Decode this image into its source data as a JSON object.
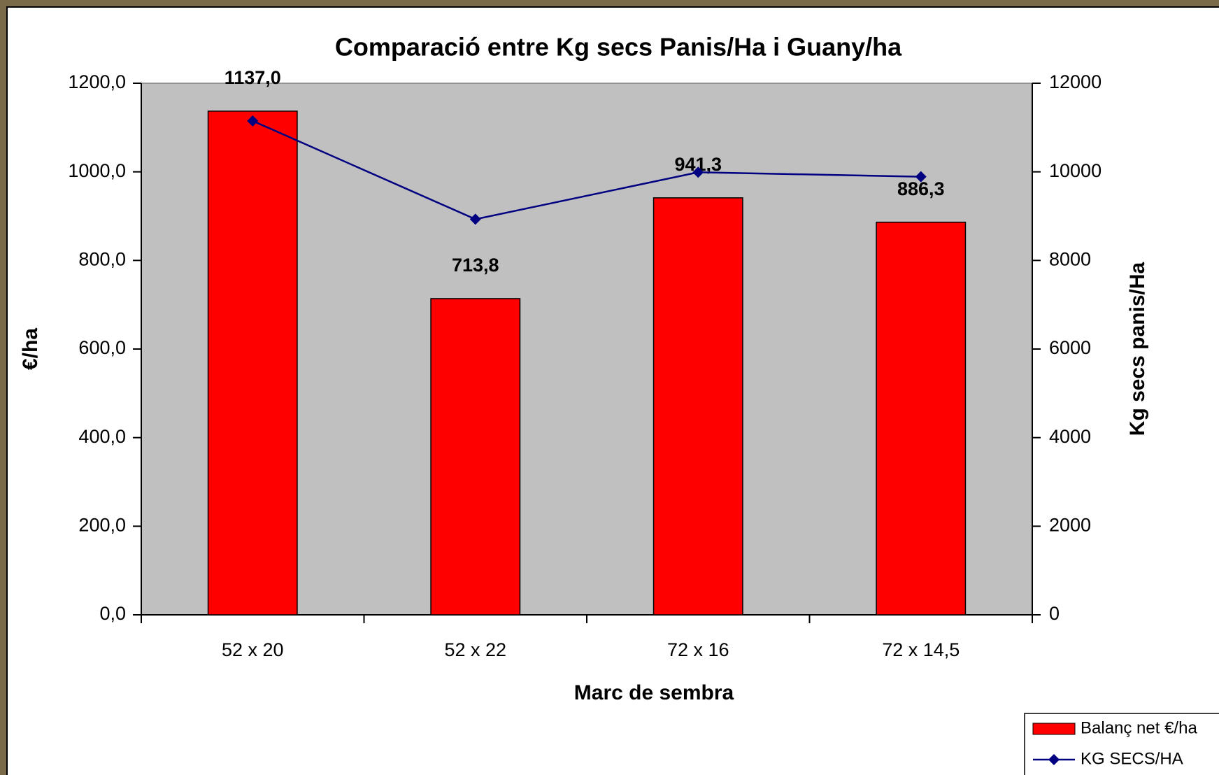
{
  "chart_data": {
    "type": "bar",
    "title": "Comparació entre Kg secs Panis/Ha i Guany/ha",
    "x_label": "Marc de sembra",
    "y_label": "€/ha",
    "y2_label": "Kg secs panis/Ha",
    "categories": [
      "52 x 20",
      "52 x 22",
      "72 x 16",
      "72 x 14,5"
    ],
    "series": [
      {
        "name": "Balanç net €/ha",
        "type": "bar",
        "color": "#ff0000",
        "values": [
          1137.0,
          713.8,
          941.3,
          886.3
        ],
        "value_labels": [
          "1137,0",
          "713,8",
          "941,3",
          "886,3"
        ]
      },
      {
        "name": "KG SECS/HA",
        "type": "line",
        "axis": "y2",
        "color": "#000080",
        "values": [
          11150,
          8930,
          9990,
          9890
        ]
      }
    ],
    "ylim": [
      0,
      1200
    ],
    "yticks": [
      {
        "value": 0,
        "label": "0,0"
      },
      {
        "value": 200,
        "label": "200,0"
      },
      {
        "value": 400,
        "label": "400,0"
      },
      {
        "value": 600,
        "label": "600,0"
      },
      {
        "value": 800,
        "label": "800,0"
      },
      {
        "value": 1000,
        "label": "1000,0"
      },
      {
        "value": 1200,
        "label": "1200,0"
      }
    ],
    "y2lim": [
      0,
      12000
    ],
    "y2ticks": [
      0,
      2000,
      4000,
      6000,
      8000,
      10000,
      12000
    ],
    "plot_background": "#c0c0c0",
    "legend": "bottom-right"
  }
}
